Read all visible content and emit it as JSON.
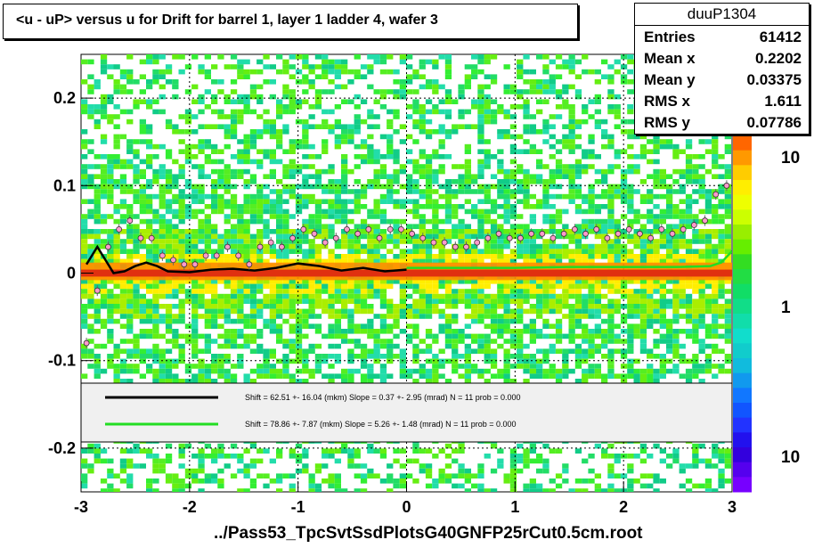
{
  "title": "<u - uP>       versus   u for Drift for barrel 1, layer 1 ladder 4, wafer 3",
  "stats": {
    "name": "duuP1304",
    "rows": [
      {
        "label": "Entries",
        "value": "61412"
      },
      {
        "label": "Mean x",
        "value": "0.2202"
      },
      {
        "label": "Mean y",
        "value": "0.03375"
      },
      {
        "label": "RMS x",
        "value": "1.611"
      },
      {
        "label": "RMS y",
        "value": "0.07786"
      }
    ]
  },
  "legend": {
    "black_fit": "Shift =    62.51 +- 16.04 (mkm) Slope =    0.37 +- 2.95 (mrad)  N = 11 prob = 0.000",
    "green_fit": "Shift =    78.86 +- 7.87 (mkm) Slope =    5.26 +- 1.48 (mrad)  N = 11 prob = 0.000"
  },
  "x_axis_title": "../Pass53_TpcSvtSsdPlotsG40GNFP25rCut0.5cm.root",
  "colors": {
    "black_fit": "#000000",
    "green_fit": "#22dd22",
    "band_core": "#e03010",
    "band_mid": "#ff8c00",
    "background_scatter": "#22dd66"
  },
  "chart_data": {
    "type": "heatmap",
    "title": "<u - uP>       versus   u for Drift for barrel 1, layer 1 ladder 4, wafer 3",
    "xlabel": "../Pass53_TpcSvtSsdPlotsG40GNFP25rCut0.5cm.root",
    "ylabel": "",
    "xlim": [
      -3,
      3
    ],
    "ylim": [
      -0.25,
      0.25
    ],
    "x_ticks": [
      -3,
      -2,
      -1,
      0,
      1,
      2,
      3
    ],
    "y_ticks": [
      -0.2,
      -0.1,
      0,
      0.1,
      0.2
    ],
    "colorbar_ticks": [
      "10",
      "1",
      "10"
    ],
    "grid": true,
    "series": [
      {
        "name": "profile_mean",
        "x": [
          -2.95,
          -2.85,
          -2.75,
          -2.65,
          -2.55,
          -2.45,
          -2.35,
          -2.25,
          -2.15,
          -2.05,
          -1.95,
          -1.85,
          -1.75,
          -1.65,
          -1.55,
          -1.45,
          -1.35,
          -1.25,
          -1.15,
          -1.05,
          -0.95,
          -0.85,
          -0.75,
          -0.65,
          -0.55,
          -0.45,
          -0.35,
          -0.25,
          -0.15,
          -0.05,
          0.05,
          0.15,
          0.25,
          0.35,
          0.45,
          0.55,
          0.65,
          0.75,
          0.85,
          0.95,
          1.05,
          1.15,
          1.25,
          1.35,
          1.45,
          1.55,
          1.65,
          1.75,
          1.85,
          1.95,
          2.05,
          2.15,
          2.25,
          2.35,
          2.45,
          2.55,
          2.65,
          2.75,
          2.85,
          2.95
        ],
        "y": [
          -0.08,
          -0.02,
          0.03,
          0.05,
          0.06,
          0.04,
          0.04,
          0.02,
          0.015,
          0.01,
          0.01,
          0.02,
          0.02,
          0.03,
          0.02,
          0.01,
          0.03,
          0.035,
          0.03,
          0.04,
          0.05,
          0.045,
          0.035,
          0.04,
          0.05,
          0.045,
          0.05,
          0.04,
          0.05,
          0.05,
          0.045,
          0.04,
          0.035,
          0.035,
          0.03,
          0.03,
          0.035,
          0.04,
          0.045,
          0.04,
          0.04,
          0.045,
          0.045,
          0.04,
          0.045,
          0.05,
          0.045,
          0.05,
          0.04,
          0.045,
          0.05,
          0.045,
          0.04,
          0.05,
          0.045,
          0.05,
          0.055,
          0.06,
          0.09,
          0.1
        ]
      },
      {
        "name": "black_fit",
        "x": [
          -2.95,
          -2.85,
          -2.8,
          -2.7,
          -2.6,
          -2.5,
          -2.4,
          -2.3,
          -2.2,
          -2.0,
          -1.8,
          -1.6,
          -1.4,
          -1.2,
          -1.0,
          -0.8,
          -0.6,
          -0.4,
          -0.2,
          0.0
        ],
        "y": [
          0.01,
          0.03,
          0.02,
          0.0,
          0.002,
          0.008,
          0.012,
          0.008,
          0.002,
          0.001,
          0.004,
          0.005,
          0.003,
          0.006,
          0.011,
          0.008,
          0.003,
          0.006,
          0.002,
          0.004
        ]
      },
      {
        "name": "green_fit",
        "x": [
          0.0,
          0.5,
          1.0,
          1.5,
          2.0,
          2.5,
          2.8,
          2.9,
          3.0
        ],
        "y": [
          0.006,
          0.006,
          0.006,
          0.007,
          0.007,
          0.007,
          0.008,
          0.012,
          0.025
        ]
      }
    ]
  }
}
